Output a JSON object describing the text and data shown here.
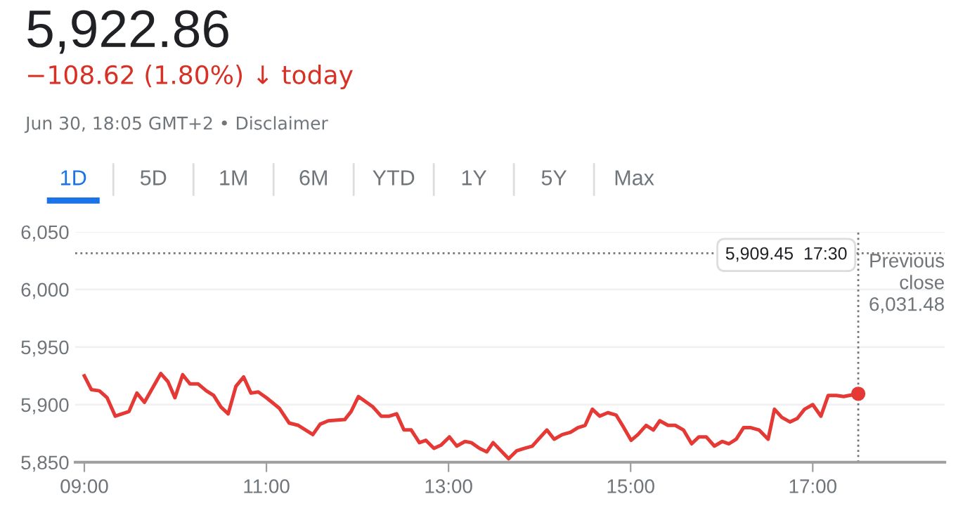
{
  "chart_data": {
    "type": "line",
    "title": "5,922.86",
    "subtitle": "−108.62 (1.80%) ↓ today",
    "annotations": [
      "Jun 30, 18:05 GMT+2 • Disclaimer",
      "1D",
      "5D",
      "1M",
      "6M",
      "YTD",
      "1Y",
      "5Y",
      "Max",
      "5,909.45  17:30"
    ],
    "series": [
      {
        "color": "#e53935",
        "x": [
          9.0,
          9.077,
          9.165,
          9.25,
          9.34,
          9.49,
          9.577,
          9.66,
          9.84,
          9.918,
          9.995,
          10.08,
          10.16,
          10.25,
          10.34,
          10.42,
          10.5,
          10.58,
          10.665,
          10.75,
          10.83,
          10.91,
          11.0,
          11.14,
          11.25,
          11.35,
          11.51,
          11.59,
          11.68,
          11.86,
          11.93,
          12.01,
          12.17,
          12.26,
          12.35,
          12.43,
          12.51,
          12.59,
          12.68,
          12.75,
          12.84,
          12.92,
          13.01,
          13.09,
          13.18,
          13.25,
          13.34,
          13.42,
          13.49,
          13.66,
          13.75,
          13.83,
          13.92,
          14.08,
          14.16,
          14.25,
          14.34,
          14.42,
          14.5,
          14.58,
          14.66,
          14.75,
          14.84,
          14.91,
          15.005,
          15.08,
          15.17,
          15.25,
          15.32,
          15.41,
          15.49,
          15.58,
          15.67,
          15.75,
          15.83,
          15.92,
          16.005,
          16.08,
          16.16,
          16.24,
          16.32,
          16.41,
          16.51,
          16.58,
          16.66,
          16.75,
          16.83,
          16.91,
          17.0,
          17.09,
          17.17,
          17.26,
          17.34,
          17.5
        ],
        "values": [
          5925,
          5913,
          5912,
          5906,
          5890,
          5894,
          5910,
          5902,
          5927,
          5920,
          5906,
          5926,
          5918,
          5918,
          5912,
          5908,
          5898,
          5892,
          5916,
          5924,
          5910,
          5911,
          5906,
          5897,
          5884,
          5882,
          5874,
          5883,
          5886,
          5887,
          5894,
          5907,
          5898,
          5890,
          5890,
          5892,
          5878,
          5878,
          5867,
          5869,
          5862,
          5865,
          5872,
          5864,
          5868,
          5867,
          5862,
          5859,
          5867,
          5853,
          5860,
          5862,
          5864,
          5878,
          5870,
          5874,
          5876,
          5880,
          5882,
          5896,
          5890,
          5893,
          5891,
          5882,
          5869,
          5874,
          5882,
          5878,
          5886,
          5882,
          5882,
          5878,
          5866,
          5872,
          5872,
          5864,
          5868,
          5866,
          5870,
          5880,
          5880,
          5878,
          5870,
          5896,
          5889,
          5885,
          5888,
          5896,
          5900,
          5890,
          5908,
          5908,
          5907,
          5909.45
        ]
      },
      {
        "color": "#e53935",
        "type": "scatter",
        "marker": "circle",
        "x": [
          17.5
        ],
        "values": [
          5909.45
        ]
      }
    ],
    "ref_lines": [
      {
        "axis": "y",
        "value": 6031.48,
        "label": "Previous\nclose\n6,031.48",
        "color": "#757575",
        "line_style": "dotted"
      },
      {
        "axis": "x",
        "value": 17.5,
        "color": "#757575",
        "line_style": "dotted"
      }
    ],
    "xlim": [
      8.9,
      18.45
    ],
    "xticks": [
      {
        "value": 9,
        "label": "09:00"
      },
      {
        "value": 11,
        "label": "11:00"
      },
      {
        "value": 13,
        "label": "13:00"
      },
      {
        "value": 15,
        "label": "15:00"
      },
      {
        "value": 17,
        "label": "17:00"
      }
    ],
    "ylim": [
      5850,
      6050
    ],
    "yticks": [
      {
        "value": 5850,
        "label": "5,850"
      },
      {
        "value": 5900,
        "label": "5,900"
      },
      {
        "value": 5950,
        "label": "5,950"
      },
      {
        "value": 6000,
        "label": "6,000"
      },
      {
        "value": 6050,
        "label": "6,050"
      }
    ],
    "grid": "y",
    "legend": false,
    "marker": "none"
  }
}
